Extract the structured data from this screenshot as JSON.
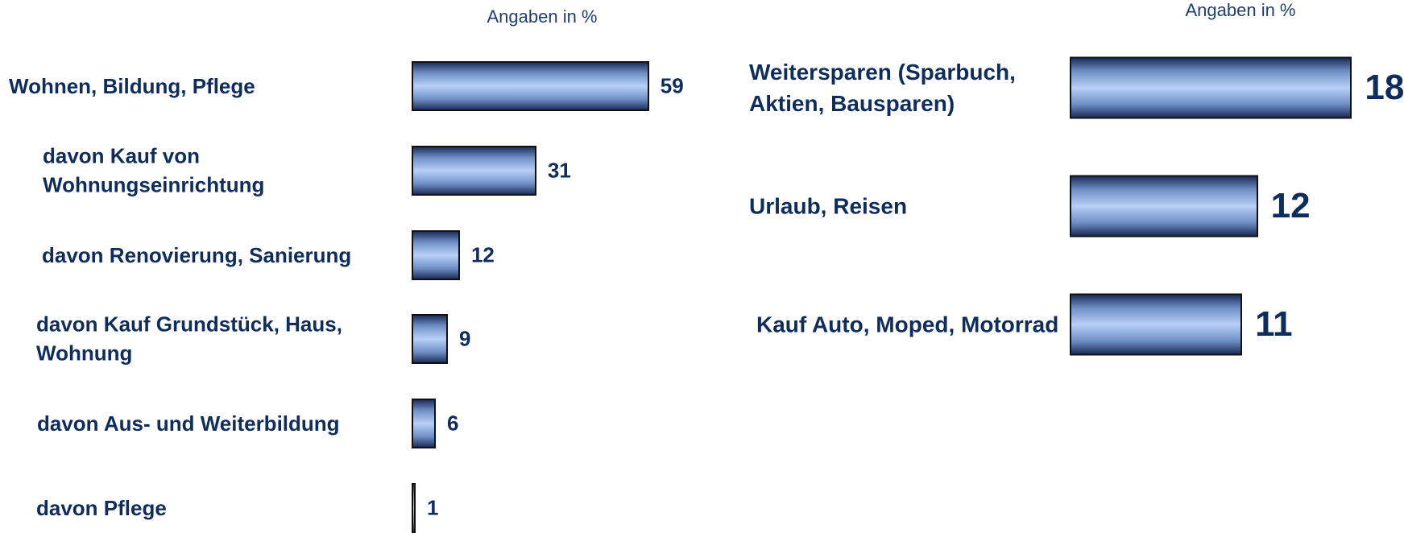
{
  "chart_data": [
    {
      "type": "bar",
      "subtitle": "Angaben in %",
      "categories": [
        "Wohnen, Bildung, Pflege",
        "davon Kauf von Wohnungseinrichtung",
        "davon Renovierung, Sanierung",
        "davon Kauf Grundstück, Haus, Wohnung",
        "davon Aus- und Weiterbildung",
        "davon Pflege"
      ],
      "values": [
        59,
        31,
        12,
        9,
        6,
        1
      ],
      "color": "#b7d0f7"
    },
    {
      "type": "bar",
      "subtitle": "Angaben in %",
      "categories": [
        "Weitersparen (Sparbuch, Aktien, Bausparen)",
        "Urlaub, Reisen",
        "Kauf Auto, Moped, Motorrad"
      ],
      "values": [
        18,
        12,
        11
      ],
      "color": "#b7d0f7"
    }
  ]
}
